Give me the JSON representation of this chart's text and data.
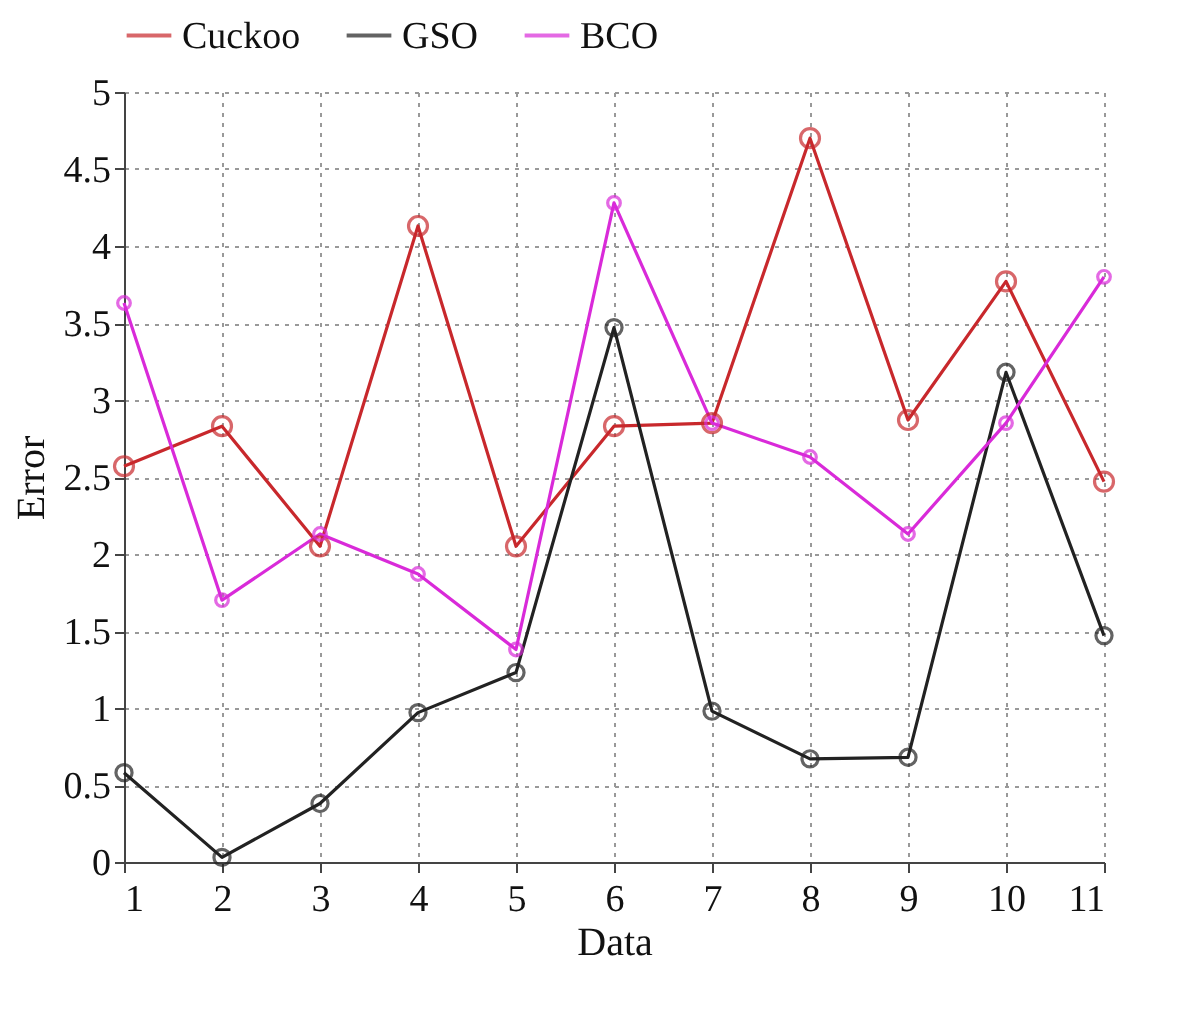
{
  "chart_data": {
    "type": "line",
    "xlabel": "Data",
    "ylabel": "Error",
    "x": [
      1,
      2,
      3,
      4,
      5,
      6,
      7,
      8,
      9,
      10,
      11
    ],
    "xlim": [
      1,
      11
    ],
    "xticks": [
      1,
      2,
      3,
      4,
      5,
      6,
      7,
      8,
      9,
      10,
      11
    ],
    "ylim": [
      0,
      5
    ],
    "yticks": [
      0,
      0.5,
      1,
      1.5,
      2,
      2.5,
      3,
      3.5,
      4,
      4.5,
      5
    ],
    "grid": true,
    "legend": "top",
    "marker": "circle",
    "line_style": "solid",
    "series": [
      {
        "name": "Cuckoo",
        "color": "#c8282c",
        "values": [
          2.57,
          2.83,
          2.05,
          4.13,
          2.05,
          2.83,
          2.85,
          4.7,
          2.87,
          3.77,
          2.47
        ]
      },
      {
        "name": "GSO",
        "color": "#222222",
        "values": [
          0.58,
          0.03,
          0.38,
          0.97,
          1.23,
          3.47,
          0.98,
          0.67,
          0.68,
          3.18,
          1.47
        ]
      },
      {
        "name": "BCO",
        "color": "#d92ad9",
        "values": [
          3.63,
          1.7,
          2.13,
          1.87,
          1.38,
          4.28,
          2.85,
          2.63,
          2.13,
          2.85,
          3.8
        ]
      }
    ]
  }
}
